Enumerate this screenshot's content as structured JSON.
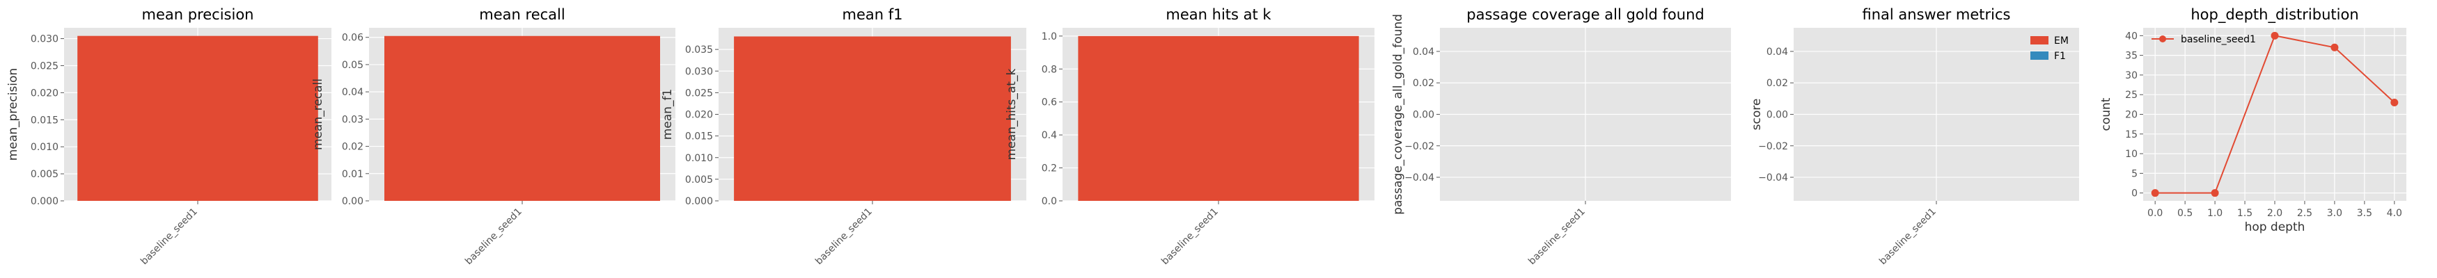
{
  "chart_data": [
    {
      "type": "bar",
      "title": "mean precision",
      "ylabel": "mean_precision",
      "xlabel": "",
      "categories": [
        "baseline_seed1"
      ],
      "values": [
        0.0305
      ],
      "ylim": [
        0,
        0.032
      ],
      "yticks": [
        0,
        0.005,
        0.01,
        0.015,
        0.02,
        0.025,
        0.03
      ],
      "ytick_labels": [
        "0.000",
        "0.005",
        "0.010",
        "0.015",
        "0.020",
        "0.025",
        "0.030"
      ],
      "grid": true,
      "color": "#E24A33"
    },
    {
      "type": "bar",
      "title": "mean recall",
      "ylabel": "mean_recall",
      "xlabel": "",
      "categories": [
        "baseline_seed1"
      ],
      "values": [
        0.0605
      ],
      "ylim": [
        0,
        0.0635
      ],
      "yticks": [
        0,
        0.01,
        0.02,
        0.03,
        0.04,
        0.05,
        0.06
      ],
      "ytick_labels": [
        "0.00",
        "0.01",
        "0.02",
        "0.03",
        "0.04",
        "0.05",
        "0.06"
      ],
      "grid": true,
      "color": "#E24A33"
    },
    {
      "type": "bar",
      "title": "mean f1",
      "ylabel": "mean_f1",
      "xlabel": "",
      "categories": [
        "baseline_seed1"
      ],
      "values": [
        0.038
      ],
      "ylim": [
        0,
        0.04
      ],
      "yticks": [
        0,
        0.005,
        0.01,
        0.015,
        0.02,
        0.025,
        0.03,
        0.035
      ],
      "ytick_labels": [
        "0.000",
        "0.005",
        "0.010",
        "0.015",
        "0.020",
        "0.025",
        "0.030",
        "0.035"
      ],
      "grid": true,
      "color": "#E24A33"
    },
    {
      "type": "bar",
      "title": "mean hits at k",
      "ylabel": "mean_hits_at_k",
      "xlabel": "",
      "categories": [
        "baseline_seed1"
      ],
      "values": [
        1.0
      ],
      "ylim": [
        0,
        1.05
      ],
      "yticks": [
        0,
        0.2,
        0.4,
        0.6,
        0.8,
        1.0
      ],
      "ytick_labels": [
        "0.0",
        "0.2",
        "0.4",
        "0.6",
        "0.8",
        "1.0"
      ],
      "grid": true,
      "color": "#E24A33"
    },
    {
      "type": "bar",
      "title": "passage coverage all gold found",
      "ylabel": "passage_coverage_all_gold_found",
      "xlabel": "",
      "categories": [
        "baseline_seed1"
      ],
      "values": [
        0
      ],
      "ylim": [
        -0.055,
        0.055
      ],
      "yticks": [
        -0.04,
        -0.02,
        0,
        0.02,
        0.04
      ],
      "ytick_labels": [
        "−0.04",
        "−0.02",
        "0.00",
        "0.02",
        "0.04"
      ],
      "grid": true,
      "color": "#E24A33"
    },
    {
      "type": "bar",
      "title": "final answer metrics",
      "ylabel": "score",
      "xlabel": "",
      "categories": [
        "baseline_seed1"
      ],
      "series": [
        {
          "name": "EM",
          "values": [
            0
          ],
          "color": "#E24A33"
        },
        {
          "name": "F1",
          "values": [
            0
          ],
          "color": "#348ABD"
        }
      ],
      "ylim": [
        -0.055,
        0.055
      ],
      "yticks": [
        -0.04,
        -0.02,
        0,
        0.02,
        0.04
      ],
      "ytick_labels": [
        "−0.04",
        "−0.02",
        "0.00",
        "0.02",
        "0.04"
      ],
      "legend": "top-right",
      "grid": true
    },
    {
      "type": "line",
      "title": "hop_depth_distribution",
      "ylabel": "count",
      "xlabel": "hop depth",
      "x": [
        0,
        1,
        2,
        3,
        4
      ],
      "series": [
        {
          "name": "baseline_seed1",
          "values": [
            0,
            0,
            40,
            37,
            23
          ],
          "color": "#E24A33"
        }
      ],
      "xlim": [
        -0.2,
        4.2
      ],
      "ylim": [
        -2,
        42
      ],
      "xticks": [
        0,
        0.5,
        1,
        1.5,
        2,
        2.5,
        3,
        3.5,
        4
      ],
      "xtick_labels": [
        "0.0",
        "0.5",
        "1.0",
        "1.5",
        "2.0",
        "2.5",
        "3.0",
        "3.5",
        "4.0"
      ],
      "yticks": [
        0,
        5,
        10,
        15,
        20,
        25,
        30,
        35,
        40
      ],
      "ytick_labels": [
        "0",
        "5",
        "10",
        "15",
        "20",
        "25",
        "30",
        "35",
        "40"
      ],
      "legend": "top-left",
      "grid": true
    }
  ]
}
